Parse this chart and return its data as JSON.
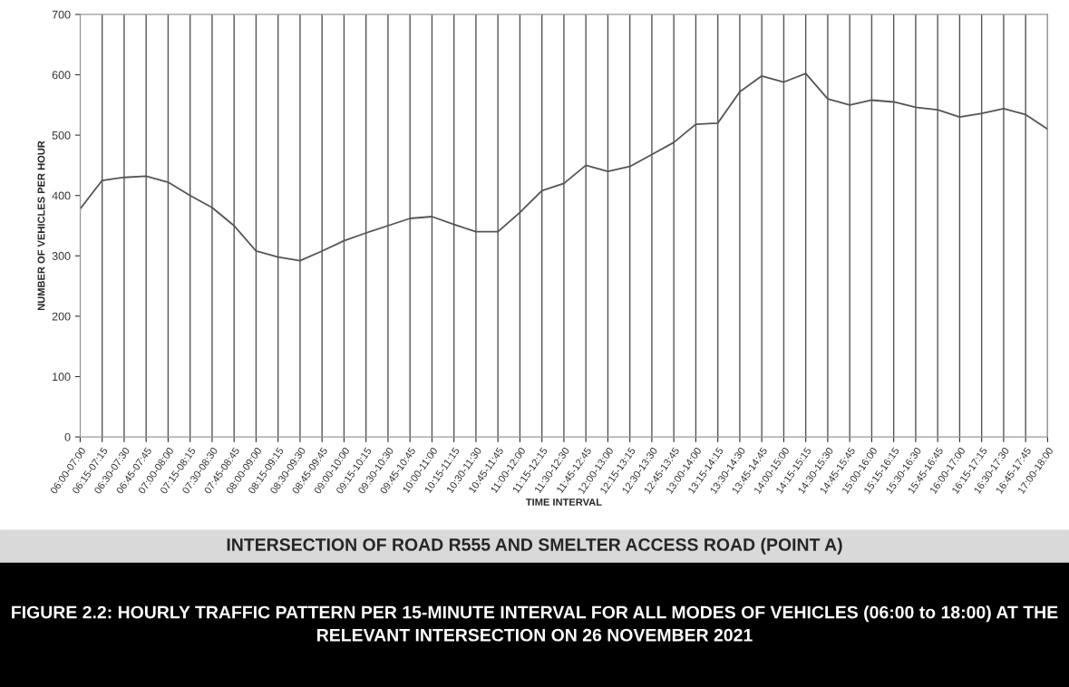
{
  "chart_data": {
    "type": "line",
    "title": "FIGURE 2.2: HOURLY TRAFFIC PATTERN PER 15-MINUTE INTERVAL FOR ALL MODES OF VEHICLES (06:00 to 18:00) AT THE RELEVANT INTERSECTION ON 26 NOVEMBER 2021",
    "subtitle": "INTERSECTION OF ROAD R555 AND SMELTER ACCESS ROAD (POINT A)",
    "xlabel": "TIME INTERVAL",
    "ylabel": "NUMBER OF VEHICLES PER HOUR",
    "categories": [
      "06:00-07:00",
      "06:15-07:15",
      "06:30-07:30",
      "06:45-07:45",
      "07:00-08:00",
      "07:15-08:15",
      "07:30-08:30",
      "07:45-08:45",
      "08:00-09:00",
      "08:15-09:15",
      "08:30-09:30",
      "08:45-09:45",
      "09:00-10:00",
      "09:15-10:15",
      "09:30-10:30",
      "09:45-10:45",
      "10:00-11:00",
      "10:15-11:15",
      "10:30-11:30",
      "10:45-11:45",
      "11:00-12:00",
      "11:15-12:15",
      "11:30-12:30",
      "11:45-12:45",
      "12:00-13:00",
      "12:15-13:15",
      "12:30-13:30",
      "12:45-13:45",
      "13:00-14:00",
      "13:15-14:15",
      "13:30-14:30",
      "13:45-14:45",
      "14:00-15:00",
      "14:15-15:15",
      "14:30-15:30",
      "14:45-15:45",
      "15:00-16:00",
      "15:15-16:15",
      "15:30-16:30",
      "15:45-16:45",
      "16:00-17:00",
      "16:15-17:15",
      "16:30-17:30",
      "16:45-17:45",
      "17:00-18:00"
    ],
    "series": [
      {
        "color": "#555555",
        "values": [
          378,
          425,
          430,
          432,
          422,
          400,
          380,
          350,
          308,
          298,
          292,
          308,
          325,
          338,
          350,
          362,
          365,
          352,
          340,
          340,
          372,
          408,
          420,
          450,
          440,
          448,
          468,
          488,
          518,
          520,
          572,
          598,
          588,
          602,
          560,
          550,
          558,
          555,
          546,
          542,
          530,
          536,
          544,
          534,
          510
        ]
      }
    ],
    "ylim": [
      0,
      700
    ],
    "yticks": [
      0,
      100,
      200,
      300,
      400,
      500,
      600,
      700
    ],
    "grid": "x",
    "legend": false,
    "marker": "none",
    "line_style": "solid"
  }
}
